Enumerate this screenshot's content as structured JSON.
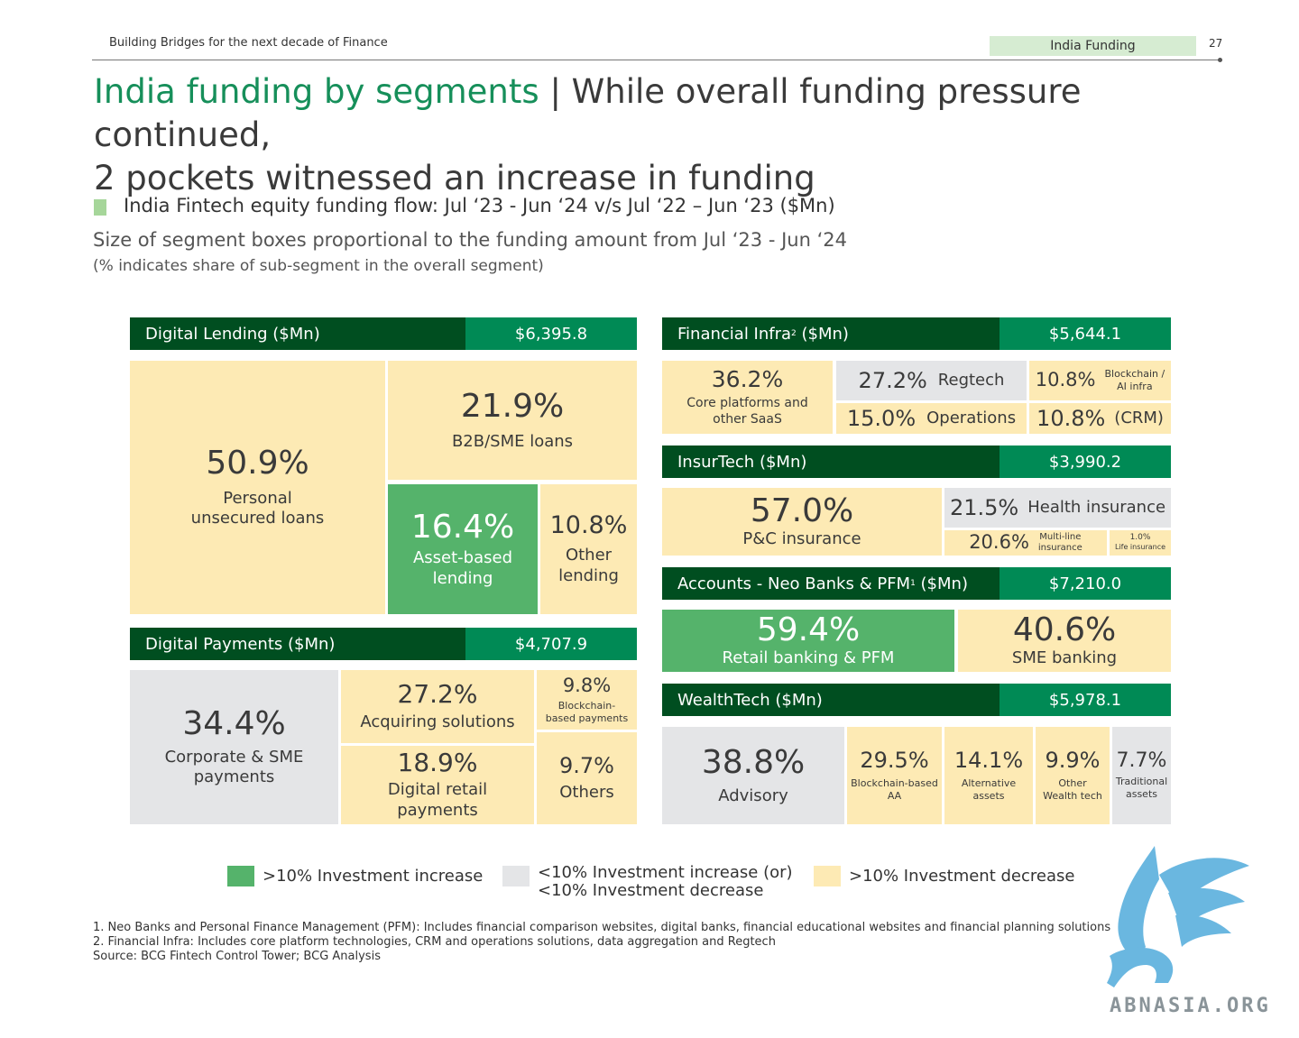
{
  "header": {
    "left_text": "Building Bridges for the next decade of Finance",
    "tag": "India Funding",
    "page_number": "27"
  },
  "title": {
    "green_part": "India funding by segments",
    "separator": "|",
    "rest_line1": "While overall funding pressure continued,",
    "rest_line2": "2 pockets witnessed an increase in funding"
  },
  "subtitle": {
    "line1": "India Fintech equity funding flow: Jul ‘23 - Jun ‘24 v/s Jul ‘22 – Jun ‘23 ($Mn)",
    "line2": "Size of segment boxes proportional to the funding amount from Jul ‘23 - Jun ‘24",
    "line3": "(% indicates share of sub-segment in the overall segment)"
  },
  "colors": {
    "increase": "#55b36b",
    "neutral": "#e4e5e7",
    "decrease": "#fdeab4",
    "header_dark": "#004e20",
    "header_amount": "#008a55"
  },
  "segments": {
    "digital_lending": {
      "name": "Digital Lending ($Mn)",
      "amount": "$6,395.8",
      "items": [
        {
          "pct": "50.9%",
          "label1": "Personal",
          "label2": "unsecured loans",
          "status": "decrease"
        },
        {
          "pct": "21.9%",
          "label1": "B2B/SME loans",
          "status": "decrease"
        },
        {
          "pct": "16.4%",
          "label1": "Asset-based",
          "label2": "lending",
          "status": "increase"
        },
        {
          "pct": "10.8%",
          "label1": "Other",
          "label2": "lending",
          "status": "decrease"
        }
      ]
    },
    "digital_payments": {
      "name": "Digital Payments ($Mn)",
      "amount": "$4,707.9",
      "items": [
        {
          "pct": "34.4%",
          "label1": "Corporate & SME",
          "label2": "payments",
          "status": "neutral"
        },
        {
          "pct": "27.2%",
          "label1": "Acquiring solutions",
          "status": "decrease"
        },
        {
          "pct": "9.8%",
          "label1": "Blockchain-",
          "label2": "based payments",
          "status": "decrease"
        },
        {
          "pct": "18.9%",
          "label1": "Digital retail",
          "label2": "payments",
          "status": "decrease"
        },
        {
          "pct": "9.7%",
          "label1": "Others",
          "status": "decrease"
        }
      ]
    },
    "financial_infra": {
      "name": "Financial Infra",
      "sup": "2",
      "name_suffix": " ($Mn)",
      "amount": "$5,644.1",
      "items": [
        {
          "pct": "36.2%",
          "label1": "Core platforms and",
          "label2": "other SaaS",
          "status": "decrease"
        },
        {
          "pct": "27.2%",
          "label1": "Regtech",
          "status": "neutral"
        },
        {
          "pct": "10.8%",
          "label1": "Blockchain /",
          "label2": "AI infra",
          "status": "decrease"
        },
        {
          "pct": "15.0%",
          "label1": "Operations",
          "status": "decrease"
        },
        {
          "pct": "10.8%",
          "label1": "(CRM)",
          "status": "decrease"
        }
      ]
    },
    "insurtech": {
      "name": "InsurTech ($Mn)",
      "amount": "$3,990.2",
      "items": [
        {
          "pct": "57.0%",
          "label1": "P&C insurance",
          "status": "decrease"
        },
        {
          "pct": "21.5%",
          "label1": "Health insurance",
          "status": "neutral"
        },
        {
          "pct": "20.6%",
          "label1": "Multi-line",
          "label2": "insurance",
          "status": "decrease"
        },
        {
          "pct": "1.0%",
          "label1": "Life insurance",
          "status": "decrease"
        }
      ]
    },
    "accounts": {
      "name": "Accounts - Neo Banks & PFM",
      "sup": "1",
      "name_suffix": " ($Mn)",
      "amount": "$7,210.0",
      "items": [
        {
          "pct": "59.4%",
          "label1": "Retail banking & PFM",
          "status": "increase"
        },
        {
          "pct": "40.6%",
          "label1": "SME banking",
          "status": "decrease"
        }
      ]
    },
    "wealthtech": {
      "name": "WealthTech ($Mn)",
      "amount": "$5,978.1",
      "items": [
        {
          "pct": "38.8%",
          "label1": "Advisory",
          "status": "neutral"
        },
        {
          "pct": "29.5%",
          "label1": "Blockchain-based",
          "label2": "AA",
          "status": "decrease"
        },
        {
          "pct": "14.1%",
          "label1": "Alternative",
          "label2": "assets",
          "status": "decrease"
        },
        {
          "pct": "9.9%",
          "label1": "Other",
          "label2": "Wealth tech",
          "status": "decrease"
        },
        {
          "pct": "7.7%",
          "label1": "Traditional",
          "label2": "assets",
          "status": "neutral"
        }
      ]
    }
  },
  "legend": {
    "increase": ">10% Investment increase",
    "neutral_line1": "<10% Investment increase (or)",
    "neutral_line2": "<10% Investment decrease",
    "decrease": ">10% Investment decrease"
  },
  "footnotes": {
    "note1": "1. Neo Banks and Personal Finance Management (PFM): Includes financial comparison websites, digital banks, financial educational websites and financial planning solutions",
    "note2": "2. Financial Infra: Includes core platform technologies, CRM and operations solutions, data aggregation and Regtech",
    "source": "Source: BCG Fintech Control Tower; BCG Analysis"
  },
  "watermark": "ABNASIA.ORG",
  "logo_icon": "griffin-logo-icon"
}
